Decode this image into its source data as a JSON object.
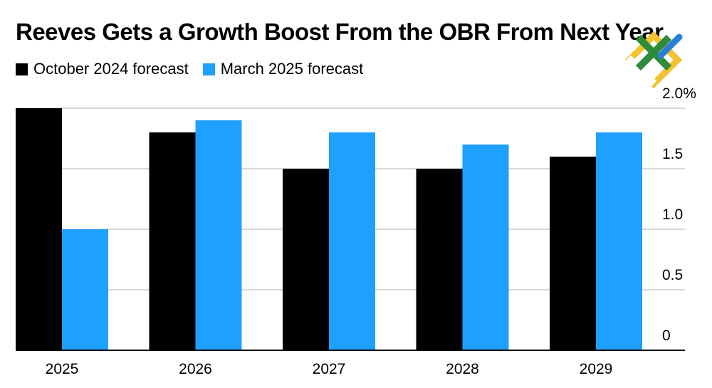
{
  "chart_data": {
    "type": "bar",
    "title": "Reeves Gets a Growth Boost From the OBR From Next Year",
    "categories": [
      "2025",
      "2026",
      "2027",
      "2028",
      "2029"
    ],
    "series": [
      {
        "name": "October 2024 forecast",
        "color": "#000000",
        "values": [
          2.0,
          1.8,
          1.5,
          1.5,
          1.6
        ]
      },
      {
        "name": "March 2025 forecast",
        "color": "#1ea0ff",
        "values": [
          1.0,
          1.9,
          1.8,
          1.7,
          1.8
        ]
      }
    ],
    "ylim": [
      0,
      2.0
    ],
    "yticks": [
      0,
      0.5,
      1.0,
      1.5,
      2.0
    ],
    "ytick_labels": [
      "0",
      "0.5",
      "1.0",
      "1.5",
      "2.0%"
    ],
    "xlabel": "",
    "ylabel": "",
    "grid": true,
    "legend_position": "top-left",
    "y_axis_side": "right"
  },
  "logo": {
    "name": "watermark-logo",
    "colors": [
      "#2e8b3a",
      "#f2c230",
      "#2a7fd4"
    ]
  }
}
